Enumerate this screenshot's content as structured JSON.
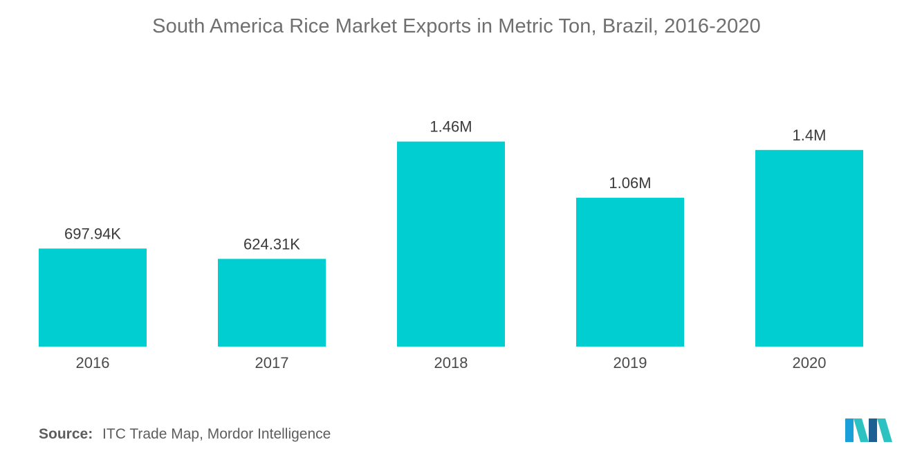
{
  "chart_data": {
    "type": "bar",
    "title": "South America Rice Market Exports in Metric Ton, Brazil, 2016-2020",
    "categories": [
      "2016",
      "2017",
      "2018",
      "2019",
      "2020"
    ],
    "values": [
      697940,
      624310,
      1460000,
      1060000,
      1400000
    ],
    "data_labels": [
      "697.94K",
      "624.31K",
      "1.46M",
      "1.06M",
      "1.4M"
    ],
    "xlabel": "",
    "ylabel": "",
    "ylim": [
      0,
      2000000
    ],
    "grid": false,
    "legend": "none",
    "bar_color": "#00ced1"
  },
  "source": {
    "label": "Source:",
    "text": "ITC Trade Map, Mordor Intelligence"
  },
  "logo": {
    "icon": "mordor-intelligence-logo",
    "colors": [
      "#1a9fd9",
      "#2cc2c2",
      "#1b5f93"
    ]
  }
}
